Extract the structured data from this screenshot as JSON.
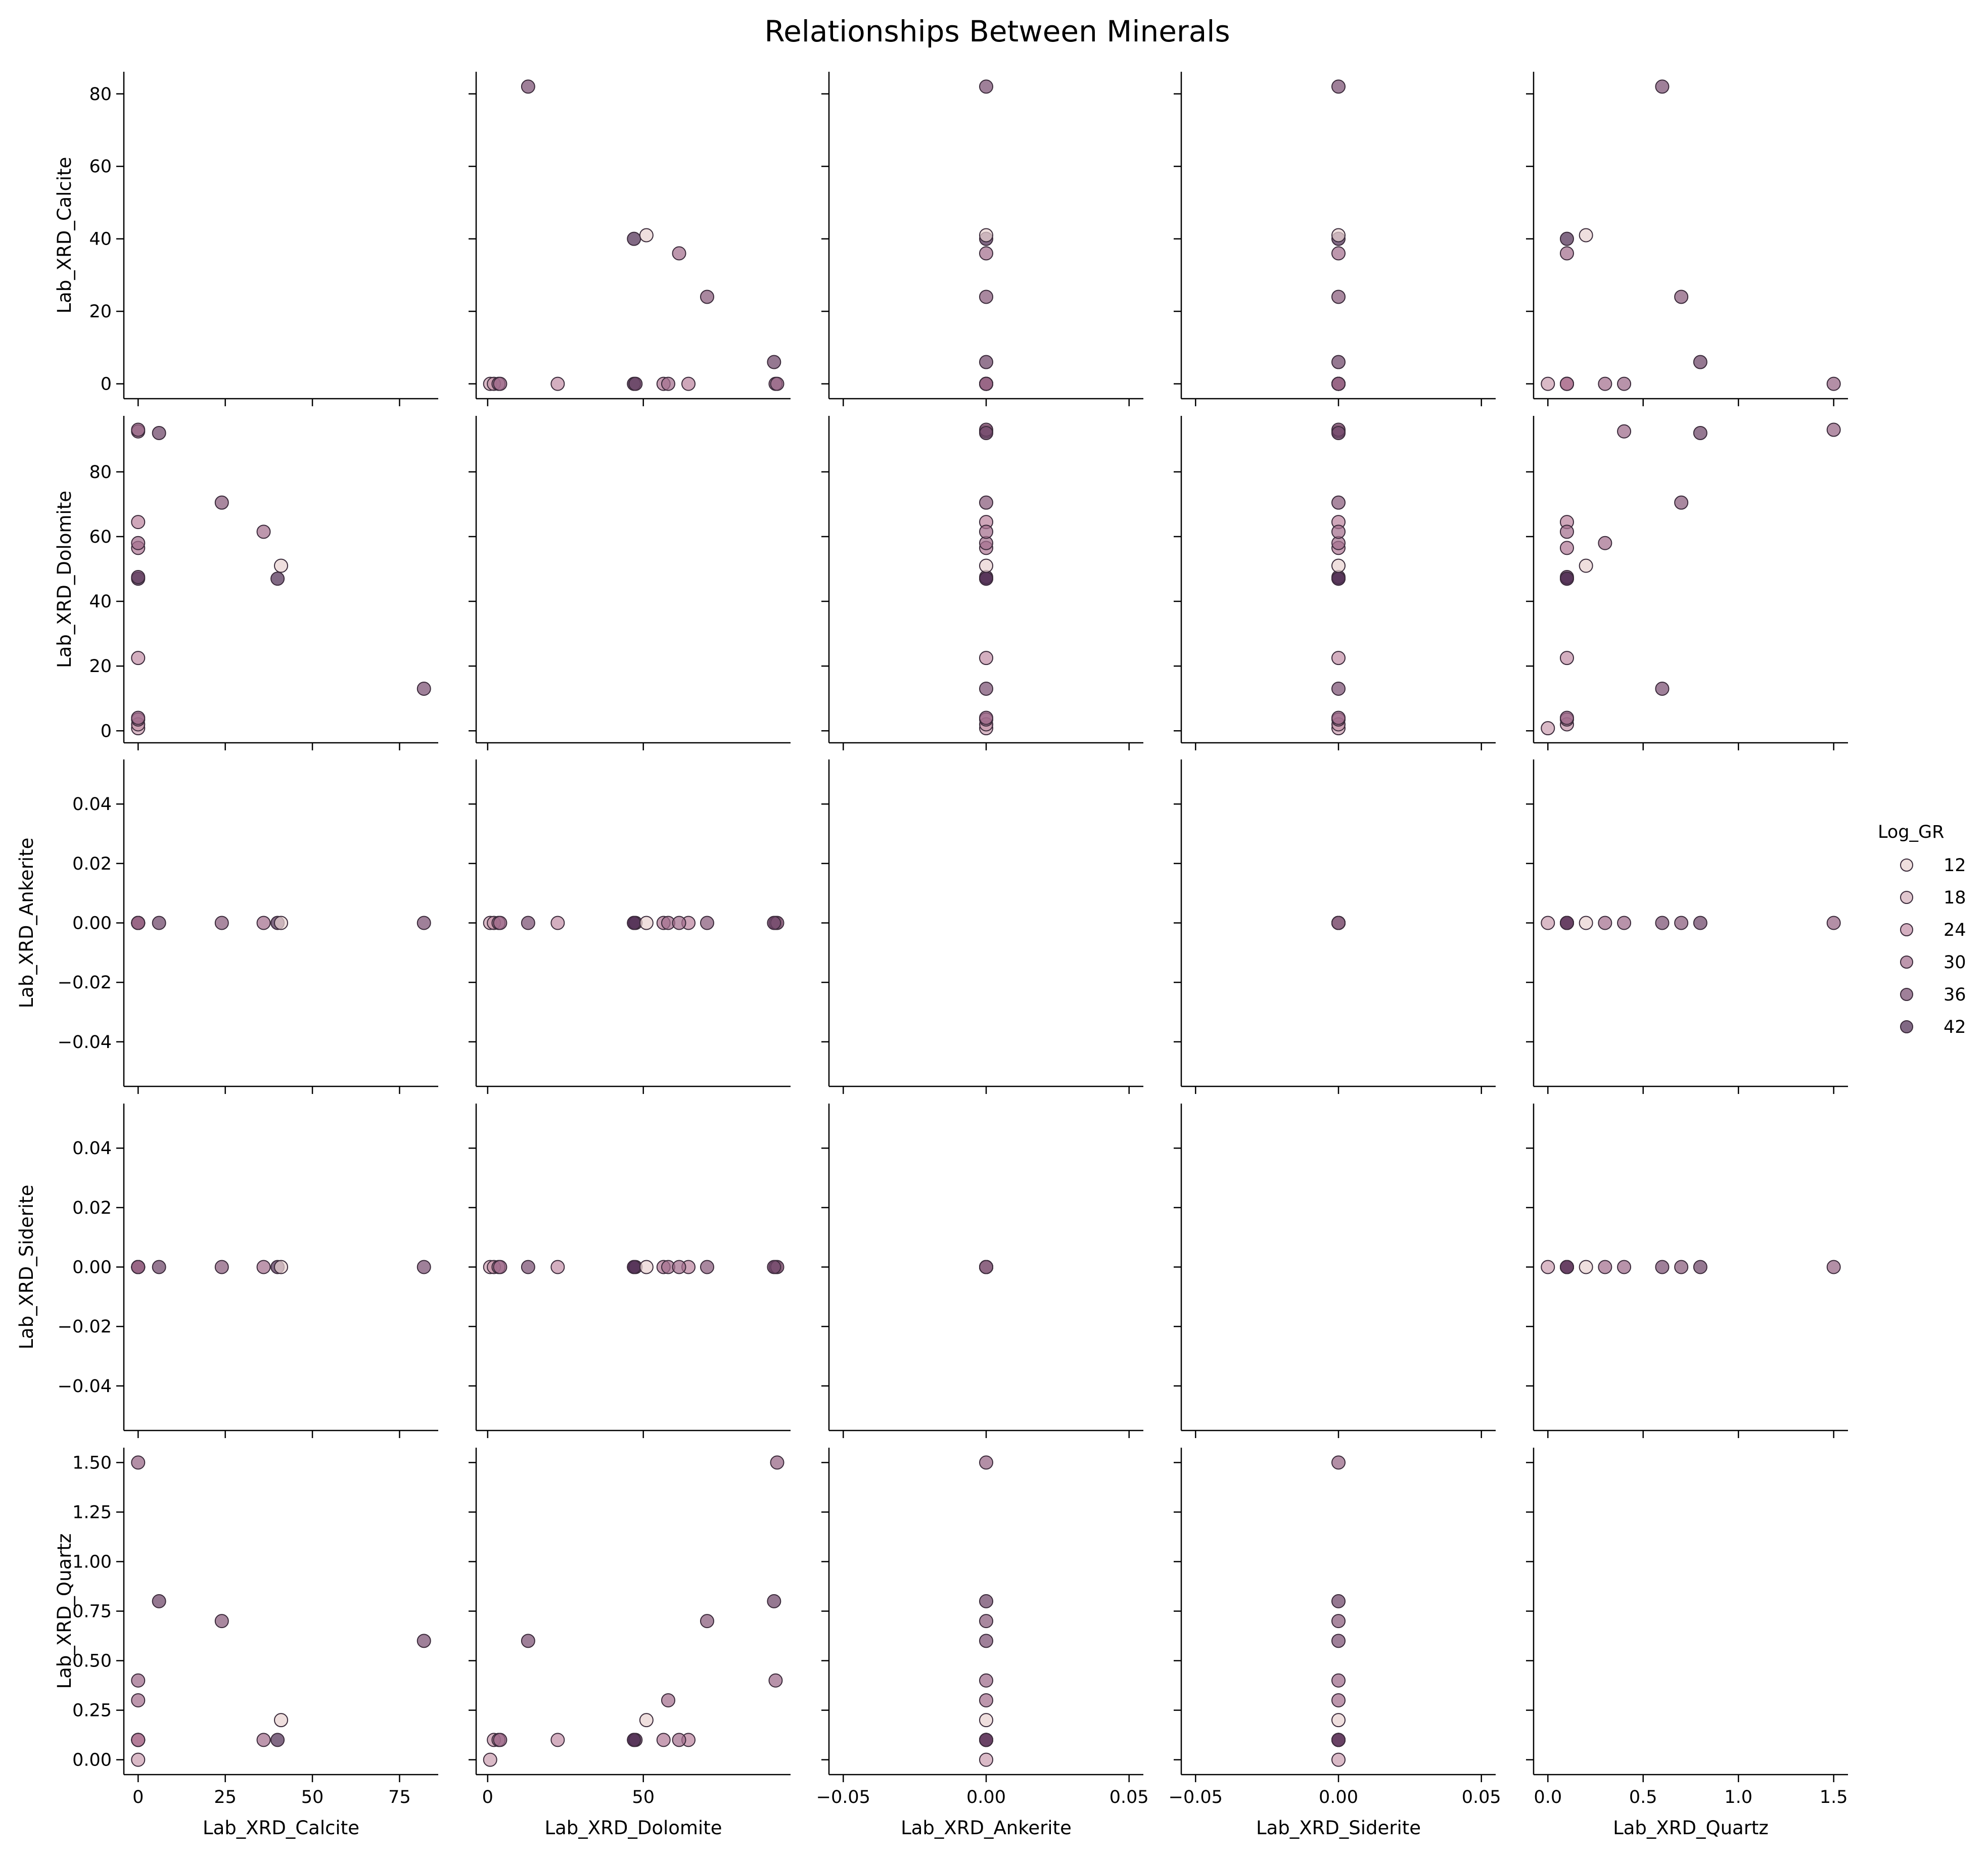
{
  "chart_data": {
    "type": "scatter",
    "title": "Relationships Between Minerals",
    "variables": [
      "Lab_XRD_Calcite",
      "Lab_XRD_Dolomite",
      "Lab_XRD_Ankerite",
      "Lab_XRD_Siderite",
      "Lab_XRD_Quartz"
    ],
    "hue_variable": "Log_GR",
    "legend": {
      "title": "Log_GR",
      "placement": "right",
      "entries": [
        {
          "label": "12",
          "value": 12
        },
        {
          "label": "18",
          "value": 18
        },
        {
          "label": "24",
          "value": 24
        },
        {
          "label": "30",
          "value": 30
        },
        {
          "label": "36",
          "value": 36
        },
        {
          "label": "42",
          "value": 42
        }
      ]
    },
    "hue_colors": {
      "low": "#f3e3dc",
      "mid": "#b97f9c",
      "high": "#3b1f45"
    },
    "hue_range": [
      9,
      45
    ],
    "axes": [
      {
        "name": "Lab_XRD_Calcite",
        "lim": [
          -4.1,
          86.1
        ],
        "ticks": [
          0,
          25,
          50,
          75
        ],
        "tick_labels": [
          "0",
          "25",
          "50",
          "75"
        ],
        "y_ticks": [
          0,
          20,
          40,
          60,
          80
        ],
        "y_tick_labels": [
          "0",
          "20",
          "40",
          "60",
          "80"
        ]
      },
      {
        "name": "Lab_XRD_Dolomite",
        "lim": [
          -3.7,
          97.3
        ],
        "ticks": [
          0,
          50
        ],
        "tick_labels": [
          "0",
          "50"
        ],
        "y_ticks": [
          0,
          20,
          40,
          60,
          80
        ],
        "y_tick_labels": [
          "0",
          "20",
          "40",
          "60",
          "80"
        ]
      },
      {
        "name": "Lab_XRD_Ankerite",
        "lim": [
          -0.055,
          0.055
        ],
        "ticks": [
          -0.05,
          0,
          0.05
        ],
        "tick_labels": [
          "−0.05",
          "0.00",
          "0.05"
        ],
        "y_ticks": [
          -0.04,
          -0.02,
          0,
          0.02,
          0.04
        ],
        "y_tick_labels": [
          "−0.04",
          "−0.02",
          "0.00",
          "0.02",
          "0.04"
        ]
      },
      {
        "name": "Lab_XRD_Siderite",
        "lim": [
          -0.055,
          0.055
        ],
        "ticks": [
          -0.05,
          0,
          0.05
        ],
        "tick_labels": [
          "−0.05",
          "0.00",
          "0.05"
        ],
        "y_ticks": [
          -0.04,
          -0.02,
          0,
          0.02,
          0.04
        ],
        "y_tick_labels": [
          "−0.04",
          "−0.02",
          "0.00",
          "0.02",
          "0.04"
        ]
      },
      {
        "name": "Lab_XRD_Quartz",
        "lim": [
          -0.075,
          1.575
        ],
        "ticks": [
          0,
          0.5,
          1,
          1.5
        ],
        "tick_labels": [
          "0.0",
          "0.5",
          "1.0",
          "1.5"
        ],
        "y_ticks": [
          0,
          0.25,
          0.5,
          0.75,
          1,
          1.25,
          1.5
        ],
        "y_tick_labels": [
          "0.00",
          "0.25",
          "0.50",
          "0.75",
          "1.00",
          "1.25",
          "1.50"
        ]
      }
    ],
    "samples": [
      {
        "Lab_XRD_Calcite": 0,
        "Lab_XRD_Dolomite": 0.8,
        "Lab_XRD_Ankerite": 0,
        "Lab_XRD_Siderite": 0,
        "Lab_XRD_Quartz": 0.0,
        "Log_GR": 21
      },
      {
        "Lab_XRD_Calcite": 0,
        "Lab_XRD_Dolomite": 2.0,
        "Lab_XRD_Ankerite": 0,
        "Lab_XRD_Siderite": 0,
        "Lab_XRD_Quartz": 0.1,
        "Log_GR": 23
      },
      {
        "Lab_XRD_Calcite": 0,
        "Lab_XRD_Dolomite": 3.5,
        "Lab_XRD_Ankerite": 0,
        "Lab_XRD_Siderite": 0,
        "Lab_XRD_Quartz": 0.1,
        "Log_GR": 28
      },
      {
        "Lab_XRD_Calcite": 0,
        "Lab_XRD_Dolomite": 4.0,
        "Lab_XRD_Ankerite": 0,
        "Lab_XRD_Siderite": 0,
        "Lab_XRD_Quartz": 0.1,
        "Log_GR": 31
      },
      {
        "Lab_XRD_Calcite": 0,
        "Lab_XRD_Dolomite": 22.5,
        "Lab_XRD_Ankerite": 0,
        "Lab_XRD_Siderite": 0,
        "Lab_XRD_Quartz": 0.1,
        "Log_GR": 24
      },
      {
        "Lab_XRD_Calcite": 0,
        "Lab_XRD_Dolomite": 47.0,
        "Lab_XRD_Ankerite": 0,
        "Lab_XRD_Siderite": 0,
        "Lab_XRD_Quartz": 0.1,
        "Log_GR": 44
      },
      {
        "Lab_XRD_Calcite": 0,
        "Lab_XRD_Dolomite": 47.5,
        "Lab_XRD_Ankerite": 0,
        "Lab_XRD_Siderite": 0,
        "Lab_XRD_Quartz": 0.1,
        "Log_GR": 38
      },
      {
        "Lab_XRD_Calcite": 0,
        "Lab_XRD_Dolomite": 56.5,
        "Lab_XRD_Ankerite": 0,
        "Lab_XRD_Siderite": 0,
        "Lab_XRD_Quartz": 0.1,
        "Log_GR": 28
      },
      {
        "Lab_XRD_Calcite": 0,
        "Lab_XRD_Dolomite": 58.0,
        "Lab_XRD_Ankerite": 0,
        "Lab_XRD_Siderite": 0,
        "Lab_XRD_Quartz": 0.3,
        "Log_GR": 30
      },
      {
        "Lab_XRD_Calcite": 0,
        "Lab_XRD_Dolomite": 64.5,
        "Lab_XRD_Ankerite": 0,
        "Lab_XRD_Siderite": 0,
        "Lab_XRD_Quartz": 0.1,
        "Log_GR": 26
      },
      {
        "Lab_XRD_Calcite": 0,
        "Lab_XRD_Dolomite": 92.5,
        "Lab_XRD_Ankerite": 0,
        "Lab_XRD_Siderite": 0,
        "Lab_XRD_Quartz": 0.4,
        "Log_GR": 31
      },
      {
        "Lab_XRD_Calcite": 0,
        "Lab_XRD_Dolomite": 93.0,
        "Lab_XRD_Ankerite": 0,
        "Lab_XRD_Siderite": 0,
        "Lab_XRD_Quartz": 1.5,
        "Log_GR": 32
      },
      {
        "Lab_XRD_Calcite": 6,
        "Lab_XRD_Dolomite": 92.0,
        "Lab_XRD_Ankerite": 0,
        "Lab_XRD_Siderite": 0,
        "Lab_XRD_Quartz": 0.8,
        "Log_GR": 38
      },
      {
        "Lab_XRD_Calcite": 24,
        "Lab_XRD_Dolomite": 70.5,
        "Lab_XRD_Ankerite": 0,
        "Lab_XRD_Siderite": 0,
        "Lab_XRD_Quartz": 0.7,
        "Log_GR": 34
      },
      {
        "Lab_XRD_Calcite": 36,
        "Lab_XRD_Dolomite": 61.5,
        "Lab_XRD_Ankerite": 0,
        "Lab_XRD_Siderite": 0,
        "Lab_XRD_Quartz": 0.1,
        "Log_GR": 30
      },
      {
        "Lab_XRD_Calcite": 40,
        "Lab_XRD_Dolomite": 47.0,
        "Lab_XRD_Ankerite": 0,
        "Lab_XRD_Siderite": 0,
        "Lab_XRD_Quartz": 0.1,
        "Log_GR": 42
      },
      {
        "Lab_XRD_Calcite": 41,
        "Lab_XRD_Dolomite": 51.0,
        "Lab_XRD_Ankerite": 0,
        "Lab_XRD_Siderite": 0,
        "Lab_XRD_Quartz": 0.2,
        "Log_GR": 12
      },
      {
        "Lab_XRD_Calcite": 82,
        "Lab_XRD_Dolomite": 13.0,
        "Lab_XRD_Ankerite": 0,
        "Lab_XRD_Siderite": 0,
        "Lab_XRD_Quartz": 0.6,
        "Log_GR": 36
      }
    ]
  }
}
